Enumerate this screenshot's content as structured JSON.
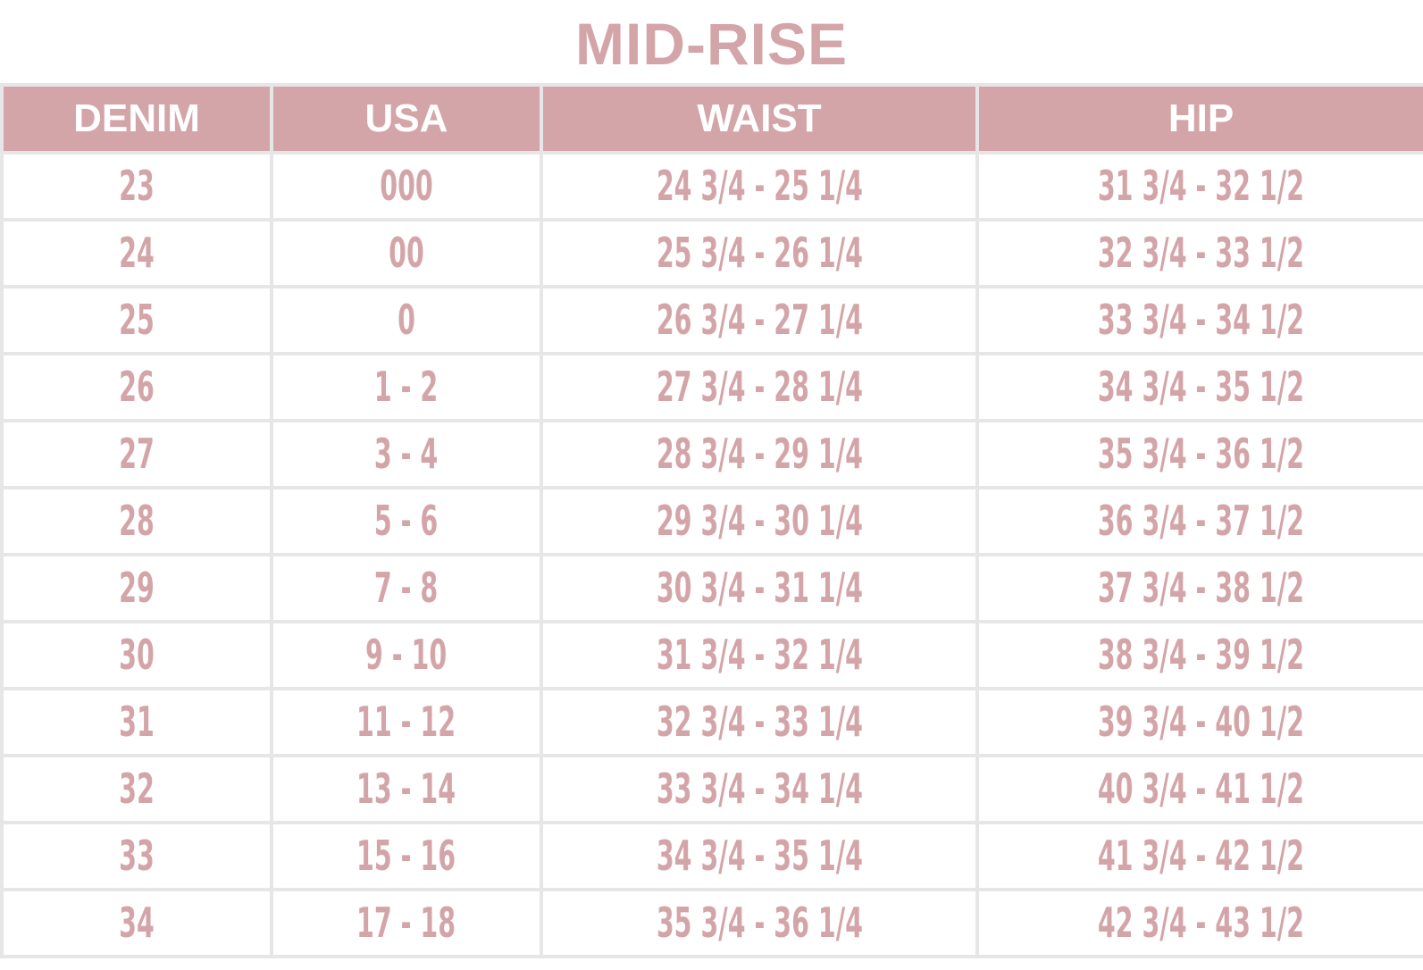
{
  "title": "MID-RISE",
  "colors": {
    "accent": "#d4a5a8",
    "header_text": "#ffffff",
    "grid": "#e6e6e6",
    "background": "#ffffff"
  },
  "table": {
    "headers": [
      "DENIM",
      "USA",
      "WAIST",
      "HIP"
    ],
    "rows": [
      [
        "23",
        "000",
        "24 3/4 - 25 1/4",
        "31 3/4 - 32 1/2"
      ],
      [
        "24",
        "00",
        "25 3/4 - 26 1/4",
        "32 3/4 - 33 1/2"
      ],
      [
        "25",
        "0",
        "26 3/4 - 27 1/4",
        "33 3/4 - 34 1/2"
      ],
      [
        "26",
        "1 - 2",
        "27 3/4 - 28 1/4",
        "34 3/4 - 35 1/2"
      ],
      [
        "27",
        "3 - 4",
        "28 3/4 - 29 1/4",
        "35 3/4 - 36 1/2"
      ],
      [
        "28",
        "5 - 6",
        "29 3/4 - 30 1/4",
        "36 3/4 - 37 1/2"
      ],
      [
        "29",
        "7 - 8",
        "30 3/4 - 31 1/4",
        "37 3/4 - 38 1/2"
      ],
      [
        "30",
        "9 - 10",
        "31 3/4 - 32 1/4",
        "38 3/4 - 39 1/2"
      ],
      [
        "31",
        "11 - 12",
        "32 3/4 - 33 1/4",
        "39 3/4 - 40 1/2"
      ],
      [
        "32",
        "13 - 14",
        "33 3/4 - 34 1/4",
        "40 3/4 - 41 1/2"
      ],
      [
        "33",
        "15 - 16",
        "34 3/4 - 35 1/4",
        "41 3/4 - 42 1/2"
      ],
      [
        "34",
        "17 - 18",
        "35 3/4 - 36 1/4",
        "42 3/4 - 43 1/2"
      ]
    ]
  }
}
